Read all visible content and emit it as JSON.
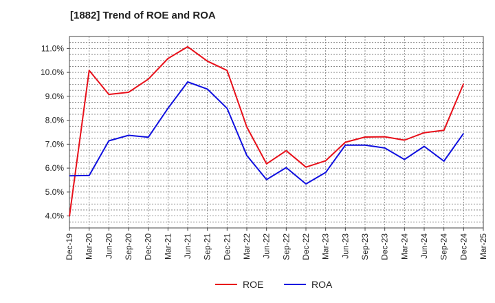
{
  "chart_data": {
    "type": "line",
    "title": "[1882]  Trend of ROE and ROA",
    "xlabel": "",
    "ylabel": "",
    "x": [
      "Dec-19",
      "Mar-20",
      "Jun-20",
      "Sep-20",
      "Dec-20",
      "Mar-21",
      "Jun-21",
      "Sep-21",
      "Dec-21",
      "Mar-22",
      "Jun-22",
      "Sep-22",
      "Dec-22",
      "Mar-23",
      "Jun-23",
      "Sep-23",
      "Dec-23",
      "Mar-24",
      "Jun-24",
      "Sep-24",
      "Dec-24",
      "Mar-25"
    ],
    "ylim": [
      3.5,
      11.5
    ],
    "yticks": [
      4.0,
      5.0,
      6.0,
      7.0,
      8.0,
      9.0,
      10.0,
      11.0
    ],
    "ytick_labels": [
      "4.0%",
      "5.0%",
      "6.0%",
      "7.0%",
      "8.0%",
      "9.0%",
      "10.0%",
      "11.0%"
    ],
    "grid": true,
    "legend_position": "bottom-center",
    "series": [
      {
        "name": "ROE",
        "color": "#e8101a",
        "values": [
          3.98,
          10.08,
          9.08,
          9.17,
          9.72,
          10.58,
          11.07,
          10.47,
          10.08,
          7.72,
          6.18,
          6.73,
          6.04,
          6.31,
          7.08,
          7.3,
          7.31,
          7.17,
          7.48,
          7.58,
          9.53,
          null
        ]
      },
      {
        "name": "ROA",
        "color": "#1010e0",
        "values": [
          5.68,
          5.69,
          7.14,
          7.37,
          7.29,
          8.5,
          9.6,
          9.3,
          8.5,
          6.53,
          5.52,
          6.02,
          5.34,
          5.82,
          6.96,
          6.96,
          6.84,
          6.36,
          6.91,
          6.29,
          7.45,
          null
        ]
      }
    ]
  }
}
